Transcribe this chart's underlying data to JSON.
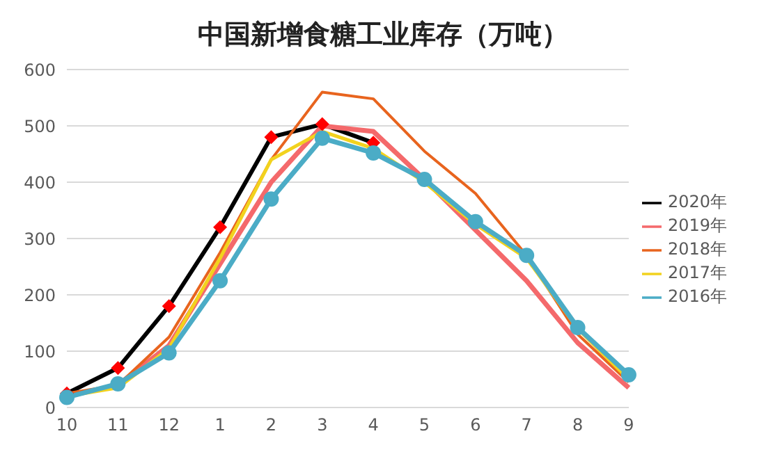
{
  "chart_data": {
    "type": "line",
    "title": "中国新增食糖工业库存（万吨）",
    "categories": [
      "10",
      "11",
      "12",
      "1",
      "2",
      "3",
      "4",
      "5",
      "6",
      "7",
      "8",
      "9"
    ],
    "series": [
      {
        "name": "2020年",
        "color": "#000000",
        "marker": "diamond",
        "colors": [
          "#ff0000",
          "#ff0000",
          "#ff0000",
          "#ff0000",
          "#ff0000",
          "#ff0000",
          "#ff0000",
          null,
          null,
          null,
          null,
          null
        ],
        "values": [
          25,
          70,
          180,
          320,
          480,
          503,
          470,
          null,
          null,
          null,
          null,
          null
        ]
      },
      {
        "name": "2019年",
        "color": "#f4696b",
        "values": [
          20,
          40,
          110,
          255,
          400,
          500,
          490,
          405,
          315,
          225,
          115,
          35
        ]
      },
      {
        "name": "2018年",
        "color": "#e8641e",
        "values": [
          25,
          40,
          125,
          275,
          440,
          560,
          548,
          455,
          380,
          270,
          130,
          45
        ]
      },
      {
        "name": "2017年",
        "color": "#f2d21e",
        "values": [
          20,
          35,
          105,
          265,
          440,
          490,
          460,
          400,
          325,
          265,
          140,
          50
        ]
      },
      {
        "name": "2016年",
        "color": "#4bacc6",
        "marker": "circle",
        "values": [
          18,
          42,
          97,
          225,
          370,
          478,
          452,
          405,
          330,
          270,
          142,
          58
        ]
      }
    ],
    "ylim": [
      0,
      600
    ],
    "yticks": [
      0,
      100,
      200,
      300,
      400,
      500,
      600
    ],
    "grid": "y",
    "legend": "right"
  }
}
